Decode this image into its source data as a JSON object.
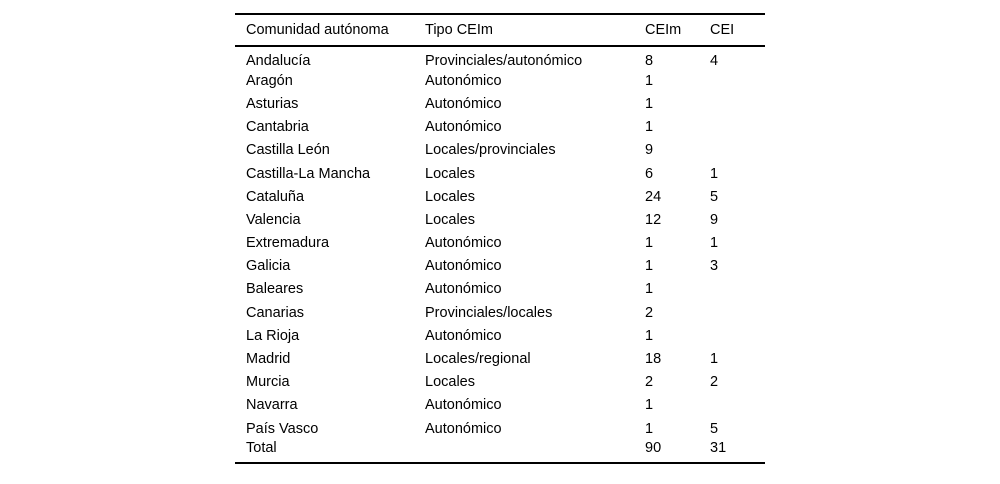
{
  "table": {
    "columns": [
      "Comunidad autónoma",
      "Tipo CEIm",
      "CEIm",
      "CEI"
    ],
    "rows": [
      [
        "Andalucía",
        "Provinciales/autonómico",
        "8",
        "4"
      ],
      [
        "Aragón",
        "Autonómico",
        "1",
        ""
      ],
      [
        "Asturias",
        "Autonómico",
        "1",
        ""
      ],
      [
        "Cantabria",
        "Autonómico",
        "1",
        ""
      ],
      [
        "Castilla León",
        "Locales/provinciales",
        "9",
        ""
      ],
      [
        "Castilla-La Mancha",
        "Locales",
        "6",
        "1"
      ],
      [
        "Cataluña",
        "Locales",
        "24",
        "5"
      ],
      [
        "Valencia",
        "Locales",
        "12",
        "9"
      ],
      [
        "Extremadura",
        "Autonómico",
        "1",
        "1"
      ],
      [
        "Galicia",
        "Autonómico",
        "1",
        "3"
      ],
      [
        "Baleares",
        "Autonómico",
        "1",
        ""
      ],
      [
        "Canarias",
        "Provinciales/locales",
        "2",
        ""
      ],
      [
        "La Rioja",
        "Autonómico",
        "1",
        ""
      ],
      [
        "Madrid",
        "Locales/regional",
        "18",
        "1"
      ],
      [
        "Murcia",
        "Locales",
        "2",
        "2"
      ],
      [
        "Navarra",
        "Autonómico",
        "1",
        ""
      ],
      [
        "País Vasco",
        "Autonómico",
        "1",
        "5"
      ],
      [
        "Total",
        "",
        "90",
        "31"
      ]
    ]
  },
  "colors": {
    "text": "#000000",
    "rule": "#000000",
    "background": "#ffffff"
  }
}
